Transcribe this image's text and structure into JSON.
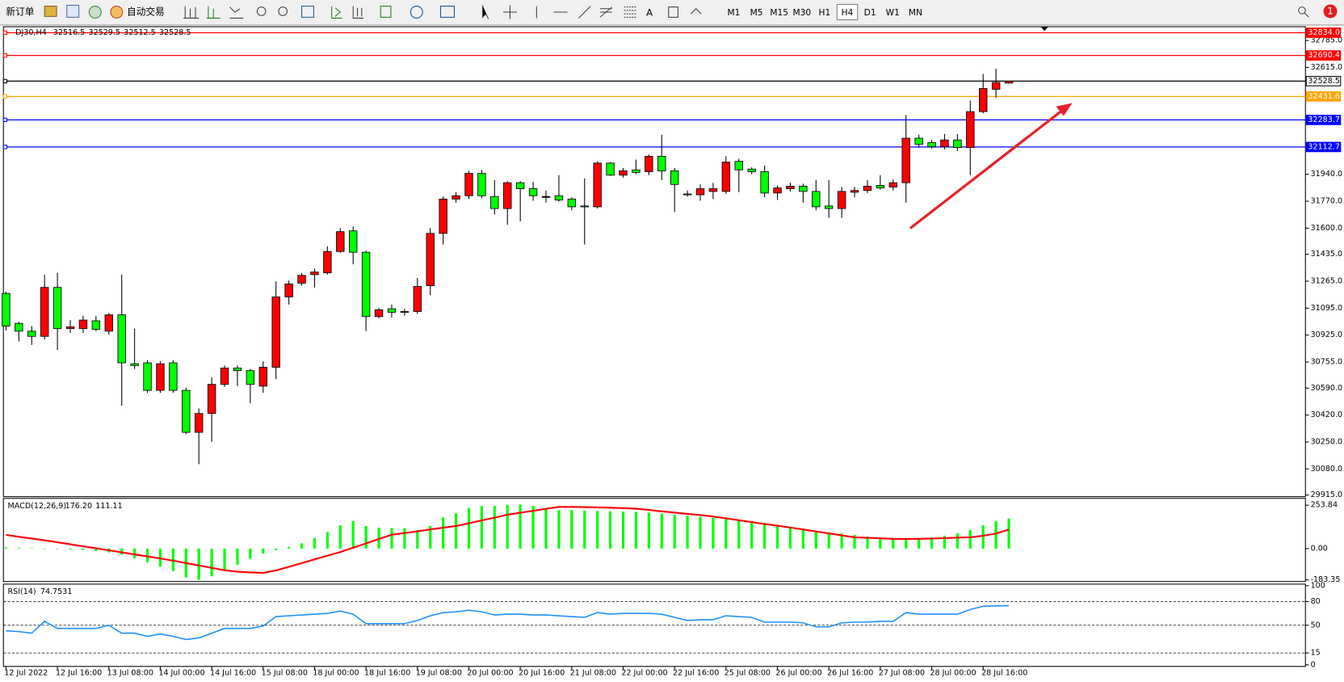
{
  "toolbar": {
    "new_order": "新订单",
    "auto_trading": "自动交易",
    "text_tool": "A",
    "timeframes": [
      "M1",
      "M5",
      "M15",
      "M30",
      "H1",
      "H4",
      "D1",
      "W1",
      "MN"
    ],
    "active_timeframe": "H4",
    "badge": 1
  },
  "chart_data": [
    {
      "type": "candlestick",
      "title": "DJ30,H4",
      "up_color": "#ff0000",
      "down_color": "#00ff00",
      "categories": [
        "12 Jul 2022",
        null,
        null,
        null,
        "12 Jul 16:00",
        null,
        null,
        null,
        "13 Jul 08:00",
        null,
        null,
        null,
        "14 Jul 00:00",
        null,
        null,
        null,
        "14 Jul 16:00",
        null,
        null,
        null,
        "15 Jul 08:00",
        null,
        null,
        null,
        "18 Jul 00:00",
        null,
        null,
        null,
        "18 Jul 16:00",
        null,
        null,
        null,
        "19 Jul 08:00",
        null,
        null,
        null,
        "20 Jul 00:00",
        null,
        null,
        null,
        "20 Jul 16:00",
        null,
        null,
        null,
        "21 Jul 08:00",
        null,
        null,
        null,
        "22 Jul 00:00",
        null,
        null,
        null,
        "22 Jul 16:00",
        null,
        null,
        null,
        "25 Jul 08:00",
        null,
        null,
        null,
        "26 Jul 00:00",
        null,
        null,
        null,
        "26 Jul 16:00",
        null,
        null,
        null,
        "27 Jul 08:00",
        null,
        null,
        null,
        "28 Jul 00:00",
        null,
        null,
        null,
        "28 Jul 16:00",
        null,
        null
      ],
      "open": [
        31188,
        30999,
        30950,
        30917,
        31226,
        30966,
        30966,
        31015,
        30950,
        31053,
        30744,
        30750,
        30576,
        30750,
        30576,
        30311,
        30430,
        30614,
        30717,
        30701,
        30603,
        30722,
        31166,
        31253,
        31307,
        31318,
        31453,
        31583,
        31448,
        31042,
        31091,
        31074,
        31074,
        31237,
        31567,
        31784,
        31805,
        31946,
        31800,
        31724,
        31887,
        31849,
        31800,
        31805,
        31784,
        31740,
        31735,
        32011,
        31935,
        31968,
        31957,
        32054,
        31962,
        31816,
        31811,
        31832,
        31832,
        32022,
        31973,
        31957,
        31822,
        31849,
        31865,
        31832,
        31740,
        31724,
        31827,
        31838,
        31870,
        31860,
        31887,
        32168,
        32141,
        32114,
        32157,
        32109,
        32336,
        32477,
        32516.5
      ],
      "high": [
        31199,
        31009,
        30982,
        31307,
        31318,
        31020,
        31047,
        31047,
        31064,
        31307,
        30966,
        30766,
        30760,
        30766,
        30592,
        30462,
        30657,
        30733,
        30733,
        30711,
        30760,
        31264,
        31269,
        31318,
        31345,
        31486,
        31600,
        31610,
        31459,
        31096,
        31118,
        31091,
        31286,
        31600,
        31800,
        31827,
        31962,
        31968,
        31903,
        31897,
        31897,
        31892,
        31838,
        31935,
        31795,
        31914,
        32022,
        32017,
        31979,
        32033,
        32065,
        32190,
        31979,
        31838,
        31876,
        31887,
        32054,
        32038,
        31984,
        31995,
        31870,
        31887,
        31881,
        31903,
        31903,
        31860,
        31860,
        31903,
        31935,
        31908,
        32314,
        32190,
        32157,
        32195,
        32195,
        32406,
        32574,
        32607,
        32529.5
      ],
      "low": [
        30955,
        30885,
        30863,
        30896,
        30831,
        30939,
        30939,
        30950,
        30928,
        30479,
        30711,
        30560,
        30560,
        30560,
        30300,
        30110,
        30251,
        30598,
        30603,
        30495,
        30560,
        30647,
        31118,
        31237,
        31226,
        31307,
        31443,
        31372,
        30950,
        31031,
        31037,
        31047,
        31058,
        31177,
        31497,
        31762,
        31784,
        31789,
        31686,
        31621,
        31643,
        31773,
        31762,
        31767,
        31713,
        31497,
        31724,
        31930,
        31919,
        31941,
        31935,
        31903,
        31703,
        31800,
        31773,
        31784,
        31816,
        31827,
        31941,
        31795,
        31778,
        31832,
        31762,
        31713,
        31665,
        31665,
        31795,
        31822,
        31843,
        31838,
        31762,
        32109,
        32103,
        32098,
        32087,
        31935,
        32325,
        32423,
        32512.5
      ],
      "close": [
        30982,
        30950,
        30917,
        31226,
        30966,
        30977,
        31020,
        30961,
        31053,
        30750,
        30733,
        30576,
        30744,
        30576,
        30311,
        30430,
        30614,
        30717,
        30701,
        30614,
        30722,
        31166,
        31248,
        31302,
        31323,
        31453,
        31578,
        31448,
        31042,
        31085,
        31069,
        31069,
        31232,
        31567,
        31784,
        31805,
        31946,
        31805,
        31724,
        31887,
        31849,
        31805,
        31800,
        31778,
        31735,
        31735,
        32011,
        31935,
        31962,
        31952,
        32054,
        31962,
        31876,
        31811,
        31849,
        31849,
        32017,
        31968,
        31957,
        31822,
        31854,
        31865,
        31832,
        31735,
        31724,
        31832,
        31838,
        31865,
        31854,
        31887,
        32168,
        32130,
        32114,
        32157,
        32109,
        32336,
        32482,
        32520,
        32528.5
      ],
      "ylim": [
        29905,
        32872
      ],
      "yticks": [
        {
          "value": 32785,
          "label": "32785.0"
        },
        {
          "value": 32615,
          "label": "32615.0"
        },
        {
          "value": 31940,
          "label": "31940.0"
        },
        {
          "value": 31770,
          "label": "31770.0"
        },
        {
          "value": 31600,
          "label": "31600.0"
        },
        {
          "value": 31435,
          "label": "31435.0"
        },
        {
          "value": 31265,
          "label": "31265.0"
        },
        {
          "value": 31095,
          "label": "31095.0"
        },
        {
          "value": 30925,
          "label": "30925.0"
        },
        {
          "value": 30755,
          "label": "30755.0"
        },
        {
          "value": 30590,
          "label": "30590.0"
        },
        {
          "value": 30420,
          "label": "30420.0"
        },
        {
          "value": 30250,
          "label": "30250.0"
        },
        {
          "value": 30080,
          "label": "30080.0"
        },
        {
          "value": 29915,
          "label": "29915.0"
        }
      ],
      "levels": [
        {
          "value": 32834,
          "label": "32834.0",
          "color": "#ff0000"
        },
        {
          "value": 32690.4,
          "color": "#ff0000"
        },
        {
          "value": 32431.6,
          "color": "#ffa500"
        },
        {
          "value": 32283.7,
          "color": "#0000ff"
        },
        {
          "value": 32112.7,
          "color": "#0000ff"
        }
      ]
    },
    {
      "type": "macd",
      "title": "MACD(12,26,9)",
      "color": "#00ff00",
      "signal_color": "#ff0000",
      "readout": {
        "value": 176.2,
        "label": "176.20"
      },
      "values": [
        6,
        4,
        2,
        0,
        -2,
        -5,
        -9,
        -14,
        -22,
        -35,
        -56,
        -81,
        -107,
        -132,
        -168,
        -183,
        -162,
        -130,
        -95,
        -60,
        -30,
        -8,
        10,
        30,
        61,
        96,
        137,
        162,
        132,
        122,
        120,
        120,
        108,
        132,
        183,
        208,
        238,
        249,
        250,
        255,
        258,
        250,
        234,
        225,
        225,
        222,
        220,
        218,
        216,
        214,
        210,
        205,
        198,
        192,
        186,
        180,
        172,
        168,
        160,
        150,
        137,
        127,
        117,
        105,
        96,
        88,
        80,
        71,
        64,
        56,
        50,
        55,
        65,
        75,
        90,
        110,
        137,
        160,
        176.2
      ],
      "signal": [
        80,
        69,
        59,
        48,
        37,
        25,
        13,
        2,
        -10,
        -22,
        -34,
        -46,
        -58,
        -71,
        -85,
        -99,
        -113,
        -127,
        -135,
        -140,
        -142,
        -128,
        -107,
        -85,
        -63,
        -42,
        -20,
        5,
        30,
        56,
        81,
        91,
        101,
        112,
        122,
        132,
        148,
        165,
        181,
        198,
        210,
        221,
        233,
        244,
        244,
        243,
        241,
        239,
        237,
        234,
        226,
        218,
        211,
        203,
        196,
        188,
        177,
        166,
        155,
        144,
        134,
        123,
        112,
        100,
        89,
        77,
        66,
        63,
        60,
        57,
        56,
        57,
        59,
        61,
        64,
        66,
        75,
        88,
        111.11
      ],
      "ylim": [
        -193,
        294
      ],
      "yticks": [
        253.84,
        {
          "value": 0,
          "label": "0.00"
        },
        -183.35
      ]
    },
    {
      "type": "rsi",
      "title": "RSI(14)",
      "color": "#1e90ff",
      "values": [
        43,
        42,
        40,
        55,
        46,
        46,
        46,
        46,
        50,
        40,
        40,
        36,
        39,
        36,
        32,
        34,
        40,
        46,
        46,
        46,
        49,
        61,
        62,
        63,
        64,
        65,
        68,
        64,
        52,
        52,
        52,
        52,
        56,
        62,
        66,
        67,
        69,
        67,
        63,
        64,
        64,
        63,
        63,
        62,
        61,
        60,
        66,
        64,
        65,
        65,
        65,
        64,
        60,
        56,
        57,
        57,
        62,
        61,
        60,
        54,
        54,
        54,
        53,
        48,
        48,
        53,
        54,
        54,
        55,
        55,
        66,
        64,
        64,
        64,
        64,
        70,
        74,
        74.5,
        74.7531
      ],
      "ylim": [
        -2,
        102
      ],
      "yticks": [
        100,
        80,
        50,
        15,
        0
      ],
      "levels": [
        80,
        50,
        15
      ]
    }
  ]
}
